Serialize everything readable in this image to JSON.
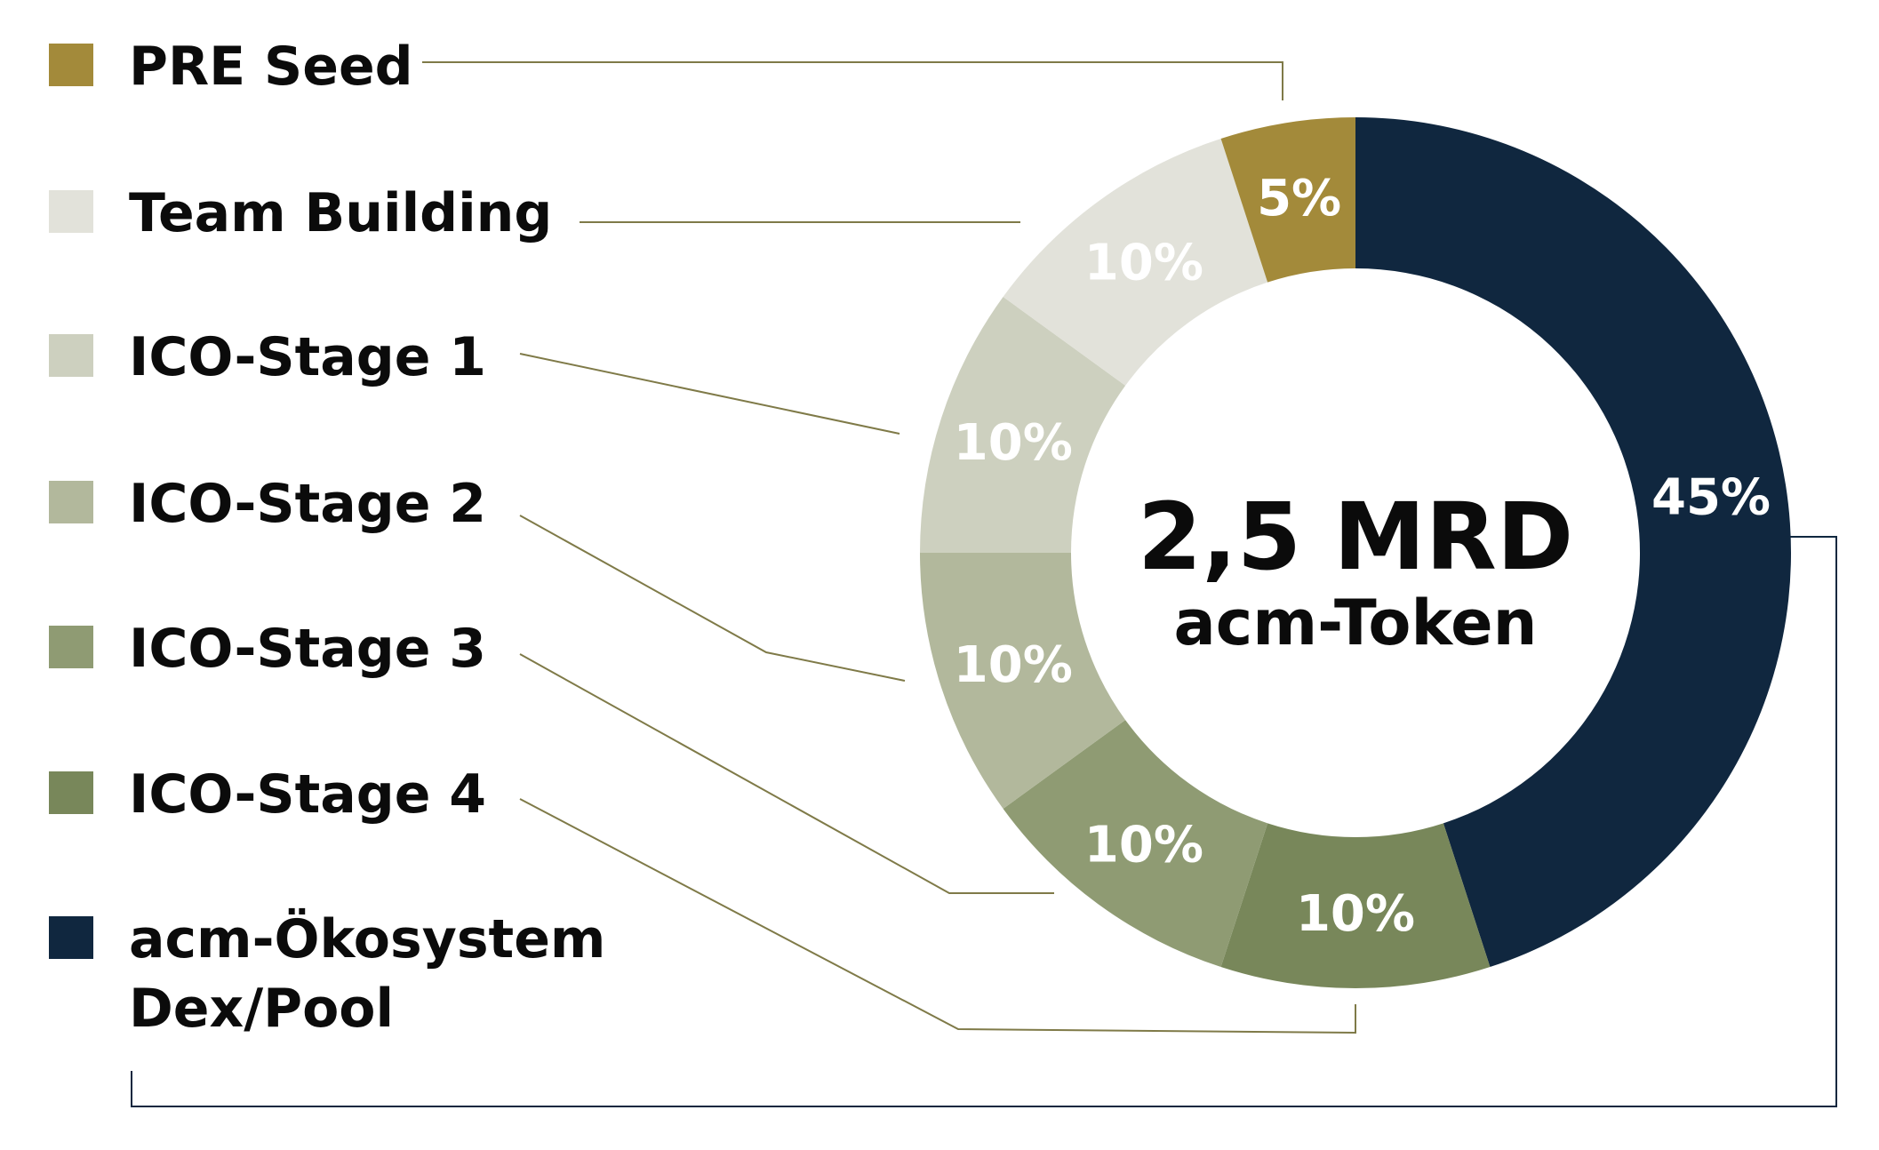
{
  "chart_data": {
    "type": "pie",
    "donut": true,
    "center_value": "2,5 MRD",
    "center_unit": "acm-Token",
    "slices": [
      {
        "label": "acm-Ökosystem",
        "label_line2": "Dex/Pool",
        "value": 45,
        "value_label": "45%",
        "color": "#10273f"
      },
      {
        "label": "ICO-Stage 4",
        "value": 10,
        "value_label": "10%",
        "color": "#78875a"
      },
      {
        "label": "ICO-Stage 3",
        "value": 10,
        "value_label": "10%",
        "color": "#8f9b73"
      },
      {
        "label": "ICO-Stage 2",
        "value": 10,
        "value_label": "10%",
        "color": "#b2b89c"
      },
      {
        "label": "ICO-Stage 1",
        "value": 10,
        "value_label": "10%",
        "color": "#cdd0bf"
      },
      {
        "label": "Team Building",
        "value": 10,
        "value_label": "10%",
        "color": "#e2e2da"
      },
      {
        "label": "PRE Seed",
        "value": 5,
        "value_label": "5%",
        "color": "#a38a3a"
      }
    ],
    "legend_order": [
      "PRE Seed",
      "Team Building",
      "ICO-Stage 1",
      "ICO-Stage 2",
      "ICO-Stage 3",
      "ICO-Stage 4",
      "acm-Ökosystem"
    ],
    "legend_position": "left",
    "start": "top, clockwise",
    "leader_line_color": "#7f7a48",
    "acm_leader_line_color": "#10273f"
  }
}
